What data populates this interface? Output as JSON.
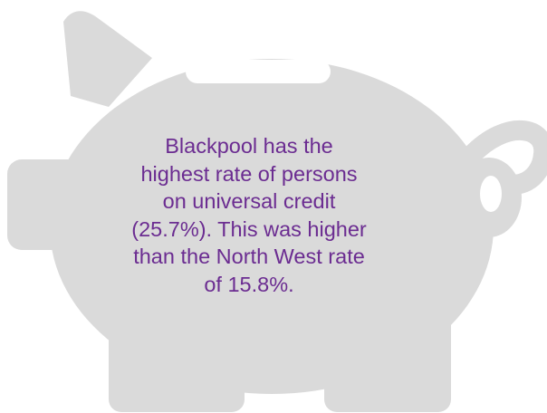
{
  "graphic": {
    "icon": "piggy-bank-icon",
    "fill_color": "#dadada",
    "text_color": "#6b2c91"
  },
  "callout": {
    "lines": [
      "Blackpool has the",
      "highest rate of persons",
      "on universal credit",
      "(25.7%). This was higher",
      "than the North West rate",
      "of 15.8%."
    ]
  }
}
